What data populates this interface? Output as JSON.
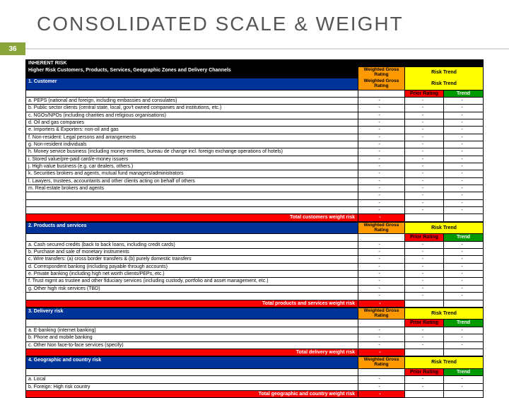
{
  "title": "CONSOLIDATED SCALE & WEIGHT",
  "page_number": "36",
  "colors": {
    "badge": "#8aa63a",
    "header_black": "#000000",
    "header_blue": "#003399",
    "header_orange": "#ff9900",
    "header_yellow": "#ffff00",
    "header_red": "#ff0000",
    "header_green": "#009900"
  },
  "labels": {
    "inherent_risk": "INHERENT RISK",
    "higher_risk_line": "Higher Risk Customers, Products, Services, Geographic Zones and Delivery Channels",
    "wgr": "Weighted Gross Rating",
    "risk_trend": "Risk Trend",
    "prior_rating": "Prior Rating",
    "trend": "Trend",
    "dash": "-"
  },
  "sections": [
    {
      "header": "1. Customer",
      "items": [
        "a. PEPS (national and foreign, including embassies and consulates)",
        "b. Public sector clients (central state, local, gov't owned companies and institutions, etc.)",
        "c. NGOs/NPOs (including charities and religious organisations)",
        "d. Oil and gas companies",
        "e. Importers & Exporters: non-oil and gas",
        "f. Non-resident: Legal persons and arrangements",
        "g. Non-resident individuals",
        "h. Money service business (including money emitters, bureau de change incl. foreign exchange operations of hotels)",
        "i. Stored value/pre-paid card/e-money issuers",
        "j. High value business (e.g. car dealers, others.)",
        "k. Securities brokers and agents, mutual fund managers/administrators",
        "l. Lawyers, trustees, accountants and other clients acting on behalf of others",
        "m. Real estate brokers and agents"
      ],
      "extra_rows": 3,
      "total": "Total customers weight risk"
    },
    {
      "header": "2. Products and services",
      "items": [
        "a. Cash secured credits (back to back loans, including credit cards)",
        "b. Purchase and sale of monetary instruments",
        "c. Wire transfers: (a) cross border transfers & (b) purely domestic transfers",
        "d. Correspondent banking (including payable through accounts)",
        "e. Private banking (including high net worth clients/PEPs, etc.)",
        "f. Trust mgmt as trustee and other fiduciary services (including custody, portfolio and asset management, etc.)",
        "g. Other high risk services (TBD)"
      ],
      "extra_rows": 1,
      "total": "Total products and services weight risk"
    },
    {
      "header": "3. Delivery risk",
      "items": [
        "a. E-banking (internet banking)",
        "b. Phone and mobile banking",
        "c. Other Non face-to-face services  (specify)"
      ],
      "extra_rows": 0,
      "total": "Total delivery weight risk"
    },
    {
      "header": "4. Geographic and country risk",
      "items": [
        "a. Local",
        "b. Foreign: High risk country"
      ],
      "extra_rows": 0,
      "total": "Total geographic and country weight risk"
    }
  ]
}
